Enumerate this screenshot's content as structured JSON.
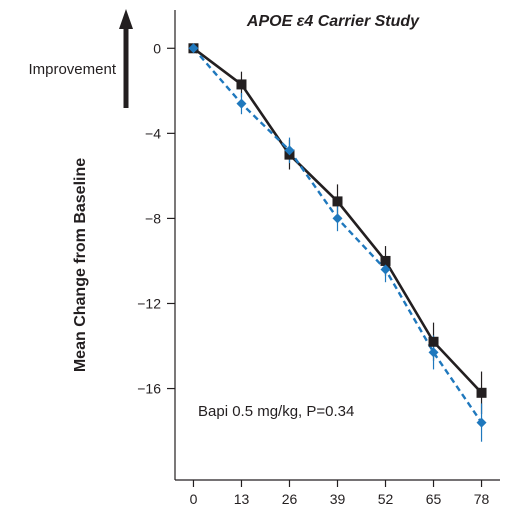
{
  "chart_data": {
    "type": "line",
    "title": "APOE ε4 Carrier Study",
    "ylabel": "Mean Change from Baseline",
    "improvement_label": "Improvement",
    "annotation": "Bapi 0.5 mg/kg, P=0.34",
    "x": [
      0,
      13,
      26,
      39,
      52,
      65,
      78
    ],
    "x_tick_labels": [
      "0",
      "13",
      "26",
      "39",
      "52",
      "65",
      "78"
    ],
    "y_ticks": [
      0,
      -4,
      -8,
      -12,
      -16
    ],
    "y_tick_labels": [
      "0",
      "−4",
      "−8",
      "−12",
      "−16"
    ],
    "xlim": [
      -5,
      83
    ],
    "ylim": [
      -20.3,
      1.8
    ],
    "grid": false,
    "series": [
      {
        "color": "#231f20",
        "marker": "square",
        "dash": "solid",
        "values": [
          0,
          -1.7,
          -5.0,
          -7.2,
          -10.0,
          -13.8,
          -16.2
        ],
        "errors": [
          0,
          0.6,
          0.7,
          0.8,
          0.7,
          0.9,
          1.0
        ]
      },
      {
        "color": "#1f78bd",
        "marker": "diamond",
        "dash": "dashed",
        "values": [
          0,
          -2.6,
          -4.8,
          -8.0,
          -10.4,
          -14.3,
          -17.6
        ],
        "errors": [
          0,
          0.5,
          0.6,
          0.6,
          0.6,
          0.8,
          0.9
        ]
      }
    ]
  }
}
